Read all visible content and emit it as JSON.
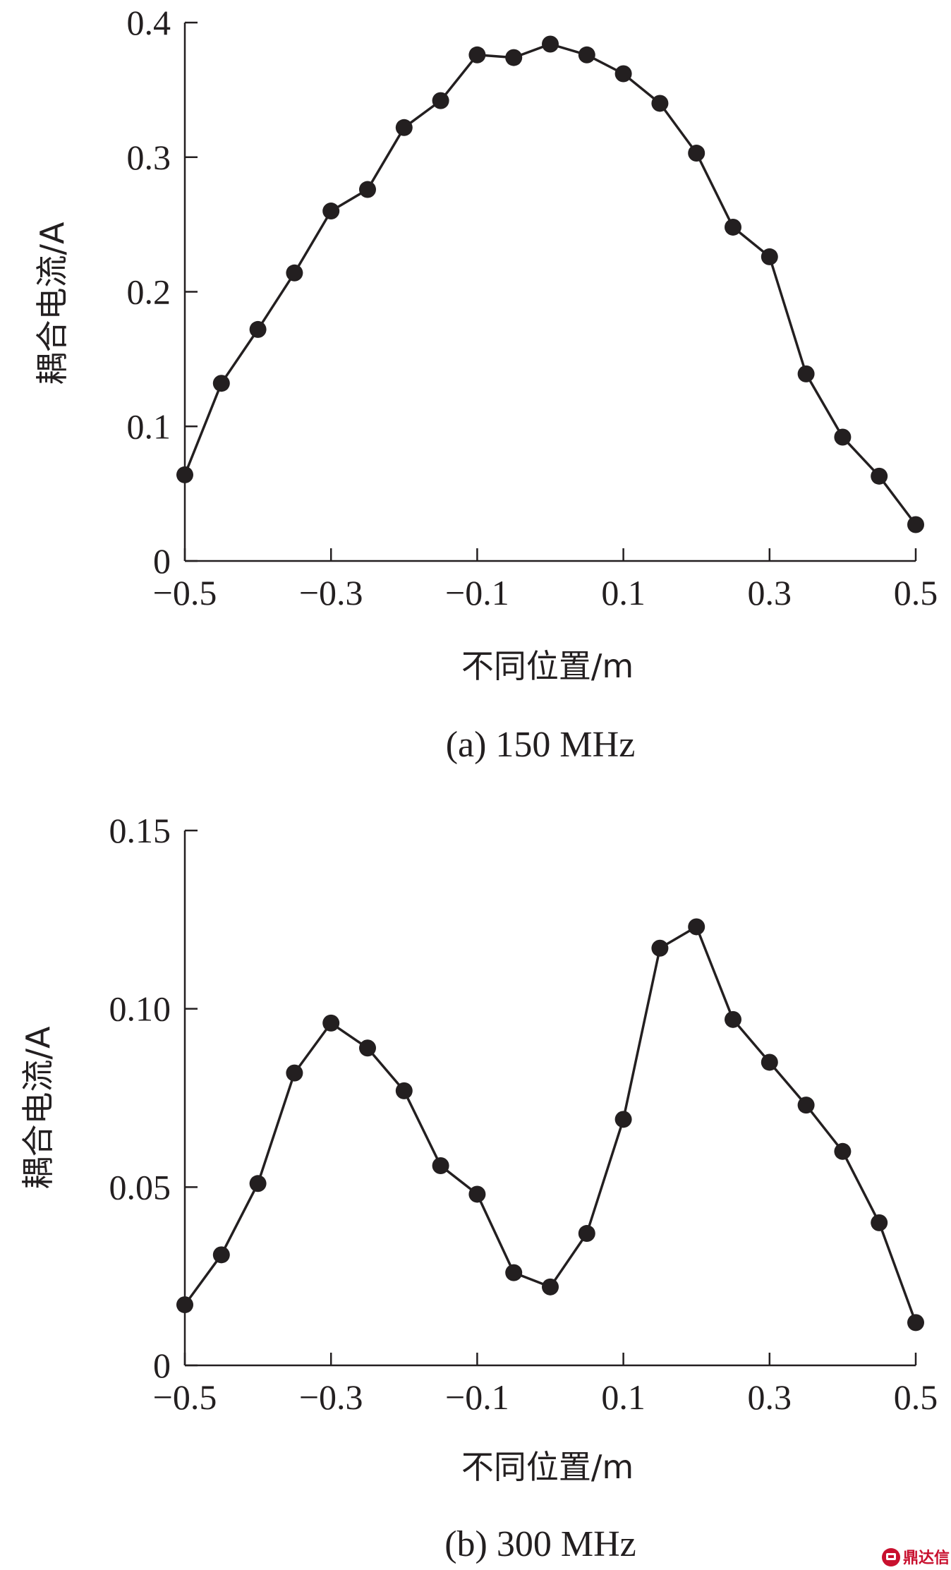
{
  "chart_data": [
    {
      "type": "line",
      "caption": "(a) 150 MHz",
      "xlabel": "不同位置/m",
      "ylabel": "耦合电流/A",
      "xlim": [
        -0.5,
        0.5
      ],
      "ylim": [
        0,
        0.4
      ],
      "xticks": [
        -0.5,
        -0.3,
        -0.1,
        0.1,
        0.3,
        0.5
      ],
      "xtick_labels": [
        "−0.5",
        "−0.3",
        "−0.1",
        "0.1",
        "0.3",
        "0.5"
      ],
      "yticks": [
        0,
        0.1,
        0.2,
        0.3,
        0.4
      ],
      "ytick_labels": [
        "0",
        "0.1",
        "0.2",
        "0.3",
        "0.4"
      ],
      "grid": false,
      "line_color": "#231f20",
      "series": [
        {
          "x": [
            -0.5,
            -0.45,
            -0.4,
            -0.35,
            -0.3,
            -0.25,
            -0.2,
            -0.15,
            -0.1,
            -0.05,
            0,
            0.05,
            0.1,
            0.15,
            0.2,
            0.25,
            0.3,
            0.35,
            0.4,
            0.45,
            0.5
          ],
          "y": [
            0.064,
            0.132,
            0.172,
            0.214,
            0.26,
            0.276,
            0.322,
            0.342,
            0.376,
            0.374,
            0.384,
            0.376,
            0.362,
            0.34,
            0.303,
            0.248,
            0.226,
            0.139,
            0.092,
            0.063,
            0.027
          ]
        }
      ]
    },
    {
      "type": "line",
      "caption": "(b) 300 MHz",
      "xlabel": "不同位置/m",
      "ylabel": "耦合电流/A",
      "xlim": [
        -0.5,
        0.5
      ],
      "ylim": [
        0,
        0.15
      ],
      "xticks": [
        -0.5,
        -0.3,
        -0.1,
        0.1,
        0.3,
        0.5
      ],
      "xtick_labels": [
        "−0.5",
        "−0.3",
        "−0.1",
        "0.1",
        "0.3",
        "0.5"
      ],
      "yticks": [
        0,
        0.05,
        0.1,
        0.15
      ],
      "ytick_labels": [
        "0",
        "0.05",
        "0.10",
        "0.15"
      ],
      "grid": false,
      "line_color": "#231f20",
      "series": [
        {
          "x": [
            -0.5,
            -0.45,
            -0.4,
            -0.35,
            -0.3,
            -0.25,
            -0.2,
            -0.15,
            -0.1,
            -0.05,
            0,
            0.05,
            0.1,
            0.15,
            0.2,
            0.25,
            0.3,
            0.35,
            0.4,
            0.45,
            0.5
          ],
          "y": [
            0.017,
            0.031,
            0.051,
            0.082,
            0.096,
            0.089,
            0.077,
            0.056,
            0.048,
            0.026,
            0.022,
            0.037,
            0.069,
            0.117,
            0.123,
            0.097,
            0.085,
            0.073,
            0.06,
            0.04,
            0.012
          ]
        }
      ]
    }
  ],
  "watermark": {
    "text": "鼎达信",
    "color": "#c8102e",
    "icon": "logo-icon"
  }
}
